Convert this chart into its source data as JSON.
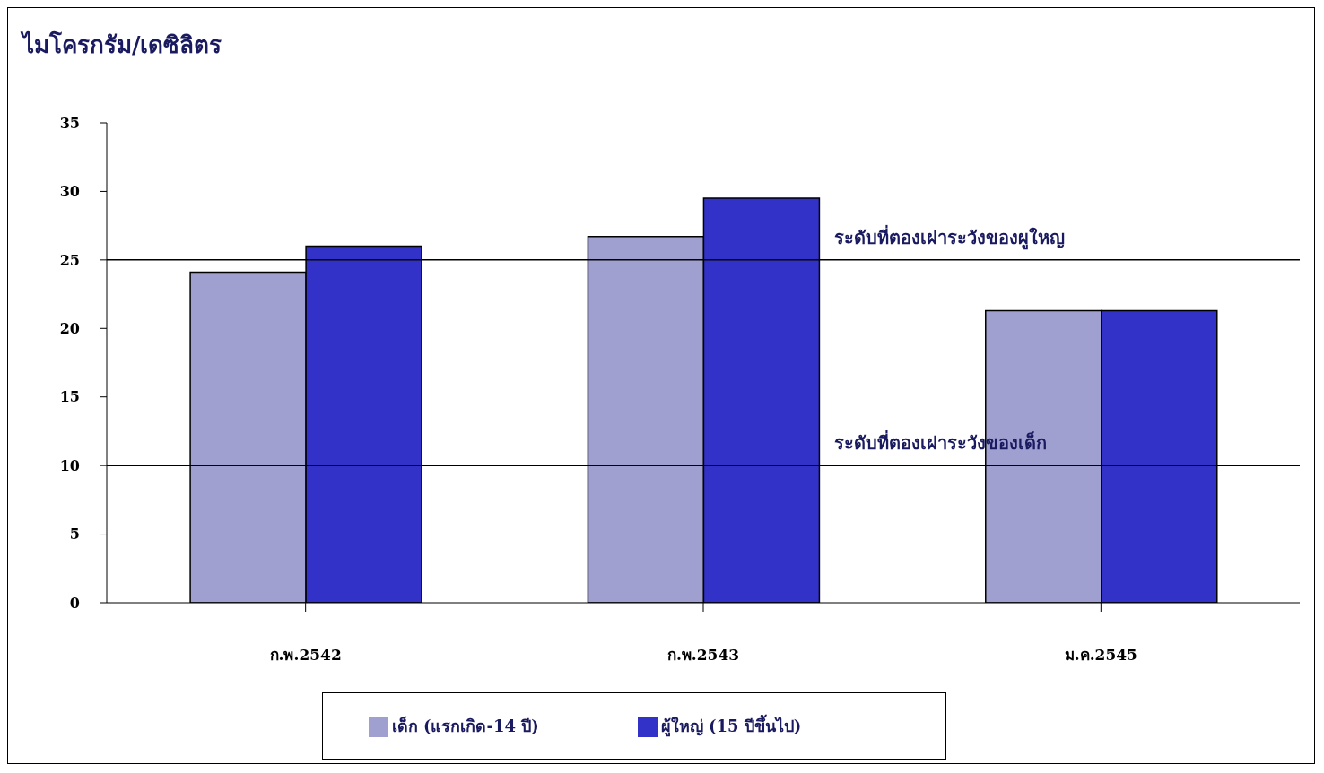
{
  "chart_data": {
    "type": "bar",
    "ylabel": "ไมโครกรัม/เดซิลิตร",
    "categories": [
      "ก.พ.2542",
      "ก.พ.2543",
      "ม.ค.2545"
    ],
    "series": [
      {
        "name": "เด็ก (แรกเกิด-14 ปี)",
        "color": "#a0a0d0",
        "values": [
          24.1,
          26.7,
          21.3
        ]
      },
      {
        "name": "ผู้ใหญ่ (15 ปีขึ้นไป)",
        "color": "#3232c8",
        "values": [
          26.0,
          29.5,
          21.3
        ]
      }
    ],
    "ylim": [
      0,
      35
    ],
    "yticks": [
      0,
      5,
      10,
      15,
      20,
      25,
      30,
      35
    ],
    "grid": false,
    "legend": "bottom",
    "ref_lines": [
      {
        "axis": "y",
        "value": 25,
        "label": "ระดับที่ตองเฝาระวังของผูใหญ",
        "color": "#000000"
      },
      {
        "axis": "y",
        "value": 10,
        "label": "ระดับที่ตองเฝาระวังของเด็ก",
        "color": "#000000"
      }
    ]
  }
}
